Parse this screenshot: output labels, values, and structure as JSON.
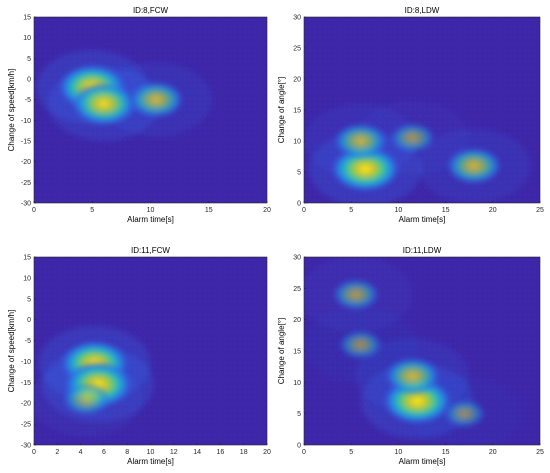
{
  "chart_data": [
    {
      "type": "heatmap",
      "title": "ID:8,FCW",
      "xlabel": "Alarm time[s]",
      "ylabel": "Change of speed[km/h]",
      "xlim": [
        0,
        20
      ],
      "ylim": [
        -30,
        15
      ],
      "xticks": [
        "0",
        "5",
        "10",
        "15",
        "20"
      ],
      "yticks": [
        "-30",
        "-25",
        "-20",
        "-15",
        "-10",
        "-5",
        "0",
        "5",
        "10",
        "15"
      ],
      "colormap": "parula",
      "hotspots": [
        {
          "x": 5.0,
          "y": -2.0,
          "intensity": 1.0
        },
        {
          "x": 6.0,
          "y": -6.0,
          "intensity": 0.9
        },
        {
          "x": 10.5,
          "y": -5.0,
          "intensity": 0.6
        }
      ]
    },
    {
      "type": "heatmap",
      "title": "ID:8,LDW",
      "xlabel": "Alarm time[s]",
      "ylabel": "Change of angle[°]",
      "xlim": [
        0,
        25
      ],
      "ylim": [
        0,
        30
      ],
      "xticks": [
        "0",
        "5",
        "10",
        "15",
        "20",
        "25"
      ],
      "yticks": [
        "0",
        "5",
        "10",
        "15",
        "20",
        "25",
        "30"
      ],
      "colormap": "parula",
      "hotspots": [
        {
          "x": 6.5,
          "y": 5.5,
          "intensity": 1.0
        },
        {
          "x": 6.0,
          "y": 10.0,
          "intensity": 0.55
        },
        {
          "x": 18.0,
          "y": 6.0,
          "intensity": 0.6
        },
        {
          "x": 11.5,
          "y": 10.5,
          "intensity": 0.3
        }
      ]
    },
    {
      "type": "heatmap",
      "title": "ID:11,FCW",
      "xlabel": "Alarm time[s]",
      "ylabel": "Change of speed[km/h]",
      "xlim": [
        0,
        20
      ],
      "ylim": [
        -30,
        15
      ],
      "xticks": [
        "0",
        "2",
        "4",
        "6",
        "8",
        "10",
        "12",
        "14",
        "16",
        "18",
        "20"
      ],
      "yticks": [
        "-30",
        "-25",
        "-20",
        "-15",
        "-10",
        "-5",
        "0",
        "5",
        "10",
        "15"
      ],
      "colormap": "parula",
      "hotspots": [
        {
          "x": 5.2,
          "y": -10.5,
          "intensity": 1.0
        },
        {
          "x": 5.5,
          "y": -15.5,
          "intensity": 1.0
        },
        {
          "x": 4.5,
          "y": -19.0,
          "intensity": 0.4
        }
      ]
    },
    {
      "type": "heatmap",
      "title": "ID:11,LDW",
      "xlabel": "Alarm time[s]",
      "ylabel": "Change of angle[°]",
      "xlim": [
        0,
        25
      ],
      "ylim": [
        0,
        30
      ],
      "xticks": [
        "0",
        "5",
        "10",
        "15",
        "20",
        "25"
      ],
      "yticks": [
        "0",
        "5",
        "10",
        "15",
        "20",
        "25",
        "30"
      ],
      "colormap": "parula",
      "hotspots": [
        {
          "x": 12.0,
          "y": 7.0,
          "intensity": 1.0
        },
        {
          "x": 11.5,
          "y": 11.0,
          "intensity": 0.6
        },
        {
          "x": 5.5,
          "y": 24.0,
          "intensity": 0.35
        },
        {
          "x": 6.0,
          "y": 16.0,
          "intensity": 0.25
        },
        {
          "x": 17.0,
          "y": 5.0,
          "intensity": 0.2
        }
      ]
    }
  ]
}
